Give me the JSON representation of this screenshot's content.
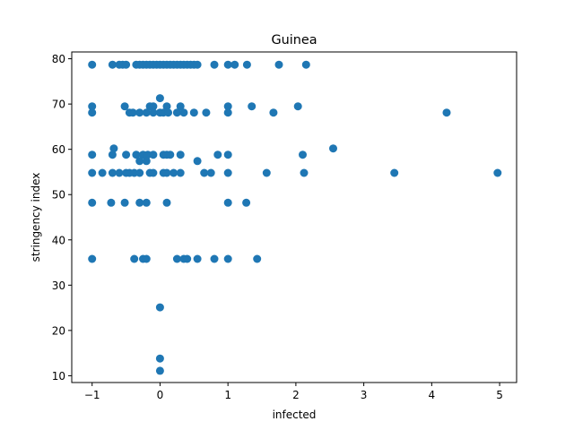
{
  "chart_data": {
    "type": "scatter",
    "title": "Guinea",
    "xlabel": "infected",
    "ylabel": "stringency index",
    "xlim": [
      -1.3,
      5.25
    ],
    "ylim": [
      8.5,
      81.5
    ],
    "xticks": [
      "−1",
      "0",
      "1",
      "2",
      "3",
      "4",
      "5"
    ],
    "xtick_values": [
      -1,
      0,
      1,
      2,
      3,
      4,
      5
    ],
    "yticks": [
      "10",
      "20",
      "30",
      "40",
      "50",
      "60",
      "70",
      "80"
    ],
    "ytick_values": [
      10,
      20,
      30,
      40,
      50,
      60,
      70,
      80
    ],
    "grid": false,
    "marker_color": "#1f77b4",
    "points": [
      [
        -1,
        78.7
      ],
      [
        -0.7,
        78.7
      ],
      [
        -0.6,
        78.7
      ],
      [
        -0.55,
        78.7
      ],
      [
        -0.5,
        78.7
      ],
      [
        -0.35,
        78.7
      ],
      [
        -0.3,
        78.7
      ],
      [
        -0.25,
        78.7
      ],
      [
        -0.2,
        78.7
      ],
      [
        -0.15,
        78.7
      ],
      [
        -0.1,
        78.7
      ],
      [
        -0.05,
        78.7
      ],
      [
        0,
        78.7
      ],
      [
        0.05,
        78.7
      ],
      [
        0.1,
        78.7
      ],
      [
        0.15,
        78.7
      ],
      [
        0.2,
        78.7
      ],
      [
        0.25,
        78.7
      ],
      [
        0.3,
        78.7
      ],
      [
        0.35,
        78.7
      ],
      [
        0.4,
        78.7
      ],
      [
        0.45,
        78.7
      ],
      [
        0.5,
        78.7
      ],
      [
        0.55,
        78.7
      ],
      [
        0.8,
        78.7
      ],
      [
        1,
        78.7
      ],
      [
        1.1,
        78.7
      ],
      [
        1.28,
        78.7
      ],
      [
        1.75,
        78.7
      ],
      [
        2.15,
        78.7
      ],
      [
        0,
        71.3
      ],
      [
        -1,
        69.5
      ],
      [
        -0.52,
        69.5
      ],
      [
        -0.15,
        69.5
      ],
      [
        -0.1,
        69.5
      ],
      [
        0.1,
        69.5
      ],
      [
        0.3,
        69.5
      ],
      [
        1,
        69.5
      ],
      [
        1.35,
        69.5
      ],
      [
        2.03,
        69.5
      ],
      [
        -1,
        68.1
      ],
      [
        -0.45,
        68.1
      ],
      [
        -0.4,
        68.1
      ],
      [
        -0.3,
        68.1
      ],
      [
        -0.2,
        68.1
      ],
      [
        -0.1,
        68.1
      ],
      [
        0,
        68.1
      ],
      [
        0.05,
        68.1
      ],
      [
        0.12,
        68.1
      ],
      [
        0.25,
        68.1
      ],
      [
        0.35,
        68.1
      ],
      [
        0.5,
        68.1
      ],
      [
        0.68,
        68.1
      ],
      [
        1,
        68.1
      ],
      [
        1.67,
        68.1
      ],
      [
        4.22,
        68.1
      ],
      [
        -0.68,
        60.2
      ],
      [
        2.55,
        60.2
      ],
      [
        -1,
        58.8
      ],
      [
        -0.7,
        58.8
      ],
      [
        -0.5,
        58.8
      ],
      [
        -0.35,
        58.8
      ],
      [
        -0.25,
        58.8
      ],
      [
        -0.18,
        58.8
      ],
      [
        -0.1,
        58.8
      ],
      [
        0.05,
        58.8
      ],
      [
        0.1,
        58.8
      ],
      [
        0.15,
        58.8
      ],
      [
        0.3,
        58.8
      ],
      [
        0.85,
        58.8
      ],
      [
        1,
        58.8
      ],
      [
        2.1,
        58.8
      ],
      [
        -0.3,
        57.4
      ],
      [
        -0.2,
        57.4
      ],
      [
        0.55,
        57.4
      ],
      [
        -1,
        54.8
      ],
      [
        -0.85,
        54.8
      ],
      [
        -0.7,
        54.8
      ],
      [
        -0.6,
        54.8
      ],
      [
        -0.5,
        54.8
      ],
      [
        -0.45,
        54.8
      ],
      [
        -0.38,
        54.8
      ],
      [
        -0.3,
        54.8
      ],
      [
        -0.15,
        54.8
      ],
      [
        -0.1,
        54.8
      ],
      [
        0.05,
        54.8
      ],
      [
        0.1,
        54.8
      ],
      [
        0.2,
        54.8
      ],
      [
        0.3,
        54.8
      ],
      [
        0.65,
        54.8
      ],
      [
        0.75,
        54.8
      ],
      [
        1,
        54.8
      ],
      [
        1.57,
        54.8
      ],
      [
        2.12,
        54.8
      ],
      [
        3.45,
        54.8
      ],
      [
        4.97,
        54.8
      ],
      [
        -1,
        48.2
      ],
      [
        -0.72,
        48.2
      ],
      [
        -0.52,
        48.2
      ],
      [
        -0.3,
        48.2
      ],
      [
        -0.2,
        48.2
      ],
      [
        0.1,
        48.2
      ],
      [
        1,
        48.2
      ],
      [
        1.27,
        48.2
      ],
      [
        -1,
        35.8
      ],
      [
        -0.38,
        35.8
      ],
      [
        -0.25,
        35.8
      ],
      [
        -0.2,
        35.8
      ],
      [
        0.25,
        35.8
      ],
      [
        0.35,
        35.8
      ],
      [
        0.4,
        35.8
      ],
      [
        0.55,
        35.8
      ],
      [
        0.8,
        35.8
      ],
      [
        1,
        35.8
      ],
      [
        1.43,
        35.8
      ],
      [
        0,
        25.1
      ],
      [
        0,
        13.8
      ],
      [
        0,
        11.1
      ]
    ]
  }
}
